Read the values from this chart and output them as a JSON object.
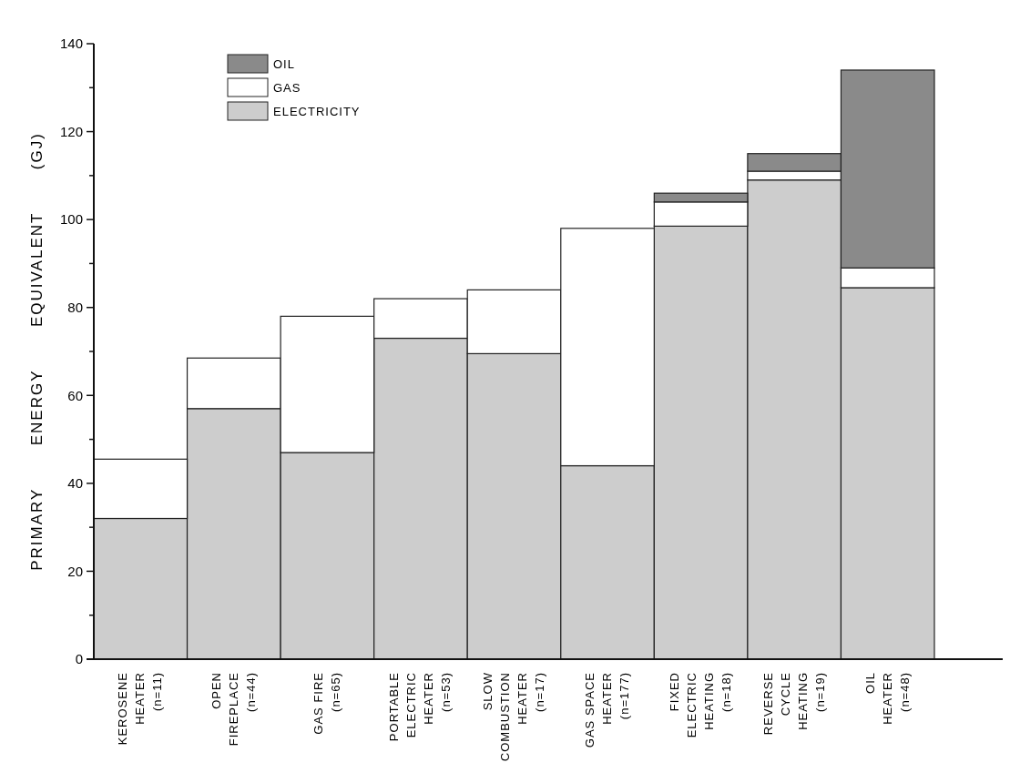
{
  "chart_data": {
    "type": "bar",
    "stacked": true,
    "ylabel": "PRIMARY ENERGY EQUIVALENT (GJ)",
    "categories": [
      "KEROSENE\nHEATER\n(n=11)",
      "OPEN\nFIREPLACE\n(n=44)",
      "GAS FIRE\n(n=65)",
      "PORTABLE\nELECTRIC\nHEATER\n(n=53)",
      "SLOW\nCOMBUSTION\nHEATER\n(n=17)",
      "GAS SPACE\nHEATER\n(n=177)",
      "FIXED\nELECTRIC\nHEATING\n(n=18)",
      "REVERSE\nCYCLE\nHEATING\n(n=19)",
      "OIL\nHEATER\n(n=48)"
    ],
    "series": [
      {
        "name": "ELECTRICITY",
        "color": "#cdcdcd",
        "values": [
          32,
          57,
          47,
          73,
          69.5,
          44,
          98.5,
          109,
          84.5
        ]
      },
      {
        "name": "GAS",
        "color": "#ffffff",
        "values": [
          13.5,
          11.5,
          31,
          9,
          14.5,
          54,
          5.5,
          2,
          4.5
        ]
      },
      {
        "name": "OIL",
        "color": "#8a8a8a",
        "values": [
          0,
          0,
          0,
          0,
          0,
          0,
          2,
          4,
          45
        ]
      }
    ],
    "ylim": [
      0,
      140
    ],
    "yticks": [
      0,
      {
        "value": 10,
        "label": null
      },
      20,
      {
        "value": 30,
        "label": null
      },
      40,
      {
        "value": 50,
        "label": null
      },
      60,
      {
        "value": 70,
        "label": null
      },
      80,
      {
        "value": 90,
        "label": null
      },
      100,
      {
        "value": 110,
        "label": null
      },
      120,
      {
        "value": 130,
        "label": null
      },
      140
    ],
    "legend": "top left"
  }
}
